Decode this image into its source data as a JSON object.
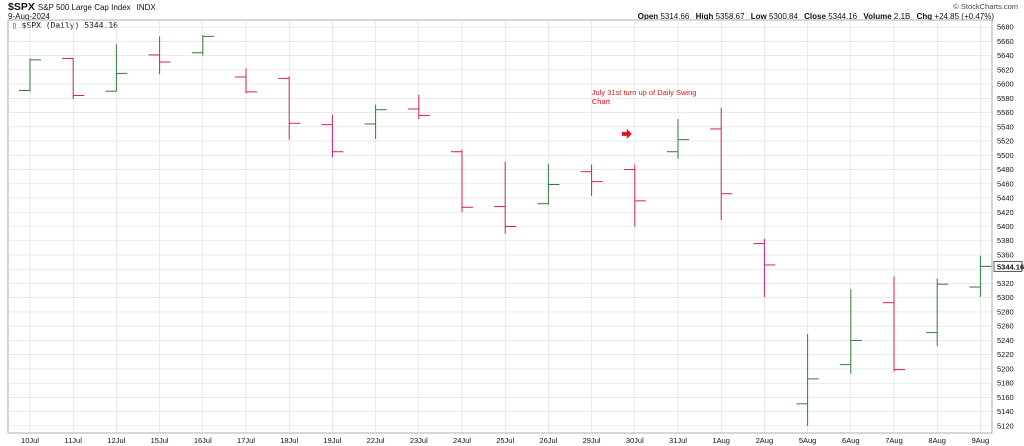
{
  "header": {
    "symbol": "$SPX",
    "name": "S&P 500 Large Cap Index",
    "exchange": "INDX",
    "date": "9-Aug-2024",
    "watermark": "© StockCharts.com",
    "open_label": "Open",
    "open": "5314.66",
    "high_label": "High",
    "high": "5358.67",
    "low_label": "Low",
    "low": "5300.84",
    "close_label": "Close",
    "close": "5344.16",
    "volume_label": "Volume",
    "volume": "2.1B",
    "chg_label": "Chg",
    "chg": "+24.85 (+0.47%)",
    "legend_prefix": "▯ $SPX (Daily) 5344.16",
    "last_price_tag": "5344.16"
  },
  "colors": {
    "up": "#2e7d32",
    "down": "#d81b60",
    "grid": "#dddddd",
    "annotation": "#e0141e"
  },
  "chart_data": {
    "type": "ohlc",
    "ylim": [
      5110,
      5690
    ],
    "yticks": [
      5120,
      5140,
      5160,
      5180,
      5200,
      5220,
      5240,
      5260,
      5280,
      5300,
      5320,
      5340,
      5360,
      5380,
      5400,
      5420,
      5440,
      5460,
      5480,
      5500,
      5520,
      5540,
      5560,
      5580,
      5600,
      5620,
      5640,
      5660,
      5680
    ],
    "categories": [
      "10Jul",
      "11Jul",
      "12Jul",
      "15Jul",
      "16Jul",
      "17Jul",
      "18Jul",
      "19Jul",
      "22Jul",
      "23Jul",
      "24Jul",
      "25Jul",
      "26Jul",
      "29Jul",
      "30Jul",
      "31Jul",
      "1Aug",
      "2Aug",
      "5Aug",
      "6Aug",
      "7Aug",
      "8Aug",
      "9Aug"
    ],
    "open": [
      5591,
      5636,
      5590,
      5641,
      5644,
      5610,
      5608,
      5543,
      5544,
      5565,
      5505,
      5428,
      5432,
      5477,
      5480,
      5505,
      5537,
      5376,
      5151,
      5206,
      5293,
      5251,
      5315
    ],
    "high": [
      5636,
      5637,
      5656,
      5667,
      5669,
      5622,
      5611,
      5557,
      5571,
      5585,
      5508,
      5491,
      5488,
      5487,
      5487,
      5551,
      5567,
      5383,
      5249,
      5312,
      5330,
      5327,
      5359
    ],
    "low": [
      5590,
      5579,
      5590,
      5614,
      5640,
      5587,
      5522,
      5497,
      5523,
      5551,
      5420,
      5390,
      5431,
      5443,
      5400,
      5495,
      5409,
      5301,
      5120,
      5193,
      5196,
      5232,
      5301
    ],
    "close": [
      5634,
      5584,
      5615,
      5631,
      5667,
      5589,
      5545,
      5505,
      5564,
      5556,
      5427,
      5400,
      5459,
      5463,
      5436,
      5522,
      5446,
      5346,
      5186,
      5240,
      5199,
      5319,
      5344
    ],
    "annotations": [
      {
        "text_line1": "July 31st turn up of Daily Swing",
        "text_line2": "Chart",
        "arrow": "right-arrow",
        "at": "30Jul",
        "value": 5530
      }
    ]
  }
}
